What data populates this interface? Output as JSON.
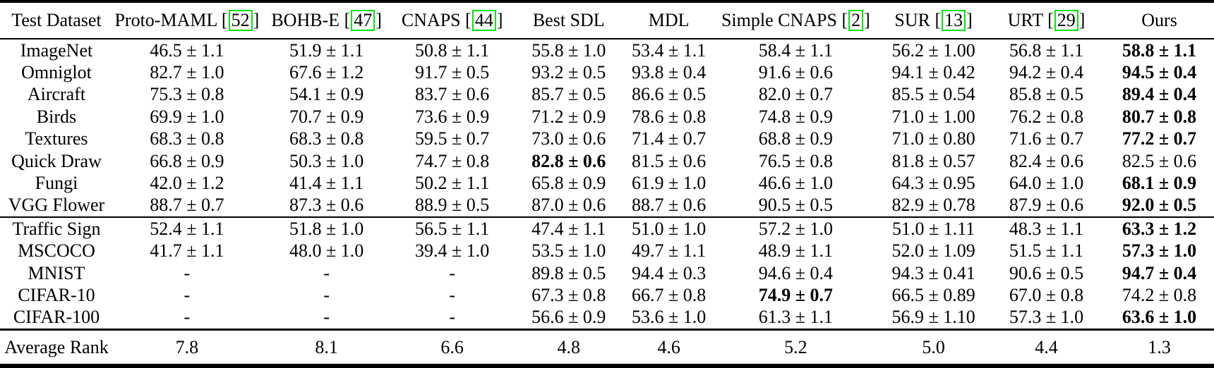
{
  "table": {
    "citation_box_color": "#00e60a",
    "columns": [
      {
        "label": "Test Dataset",
        "cite": null
      },
      {
        "label": "Proto-MAML",
        "cite": "52"
      },
      {
        "label": "BOHB-E",
        "cite": "47"
      },
      {
        "label": "CNAPS",
        "cite": "44"
      },
      {
        "label": "Best SDL",
        "cite": null
      },
      {
        "label": "MDL",
        "cite": null
      },
      {
        "label": "Simple CNAPS",
        "cite": "2"
      },
      {
        "label": "SUR",
        "cite": "13"
      },
      {
        "label": "URT",
        "cite": "29"
      },
      {
        "label": "Ours",
        "cite": null
      }
    ],
    "sections": [
      {
        "rows": [
          {
            "dataset": "ImageNet",
            "values": [
              "46.5 ± 1.1",
              "51.9 ± 1.1",
              "50.8 ± 1.1",
              "55.8 ± 1.0",
              "53.4 ± 1.1",
              "58.4 ± 1.1",
              "56.2 ± 1.00",
              "56.8 ± 1.1",
              "58.8 ± 1.1"
            ],
            "bold": [
              8
            ]
          },
          {
            "dataset": "Omniglot",
            "values": [
              "82.7 ± 1.0",
              "67.6 ± 1.2",
              "91.7 ± 0.5",
              "93.2 ± 0.5",
              "93.8 ± 0.4",
              "91.6 ± 0.6",
              "94.1 ± 0.42",
              "94.2 ± 0.4",
              "94.5 ± 0.4"
            ],
            "bold": [
              8
            ]
          },
          {
            "dataset": "Aircraft",
            "values": [
              "75.3 ± 0.8",
              "54.1 ± 0.9",
              "83.7 ± 0.6",
              "85.7 ± 0.5",
              "86.6 ± 0.5",
              "82.0 ± 0.7",
              "85.5 ± 0.54",
              "85.8 ± 0.5",
              "89.4 ± 0.4"
            ],
            "bold": [
              8
            ]
          },
          {
            "dataset": "Birds",
            "values": [
              "69.9 ± 1.0",
              "70.7 ± 0.9",
              "73.6 ± 0.9",
              "71.2 ± 0.9",
              "78.6 ± 0.8",
              "74.8 ± 0.9",
              "71.0 ± 1.00",
              "76.2 ± 0.8",
              "80.7 ± 0.8"
            ],
            "bold": [
              8
            ]
          },
          {
            "dataset": "Textures",
            "values": [
              "68.3 ± 0.8",
              "68.3 ± 0.8",
              "59.5 ± 0.7",
              "73.0 ± 0.6",
              "71.4 ± 0.7",
              "68.8 ± 0.9",
              "71.0 ± 0.80",
              "71.6 ± 0.7",
              "77.2 ± 0.7"
            ],
            "bold": [
              8
            ]
          },
          {
            "dataset": "Quick Draw",
            "values": [
              "66.8 ± 0.9",
              "50.3 ± 1.0",
              "74.7 ± 0.8",
              "82.8 ± 0.6",
              "81.5 ± 0.6",
              "76.5 ± 0.8",
              "81.8 ± 0.57",
              "82.4 ± 0.6",
              "82.5 ± 0.6"
            ],
            "bold": [
              3
            ]
          },
          {
            "dataset": "Fungi",
            "values": [
              "42.0 ± 1.2",
              "41.4 ± 1.1",
              "50.2 ± 1.1",
              "65.8 ± 0.9",
              "61.9 ± 1.0",
              "46.6 ± 1.0",
              "64.3 ± 0.95",
              "64.0 ± 1.0",
              "68.1 ± 0.9"
            ],
            "bold": [
              8
            ]
          },
          {
            "dataset": "VGG Flower",
            "values": [
              "88.7 ± 0.7",
              "87.3 ± 0.6",
              "88.9 ± 0.5",
              "87.0 ± 0.6",
              "88.7 ± 0.6",
              "90.5 ± 0.5",
              "82.9 ± 0.78",
              "87.9 ± 0.6",
              "92.0 ± 0.5"
            ],
            "bold": [
              8
            ]
          }
        ]
      },
      {
        "rows": [
          {
            "dataset": "Traffic Sign",
            "values": [
              "52.4 ± 1.1",
              "51.8 ± 1.0",
              "56.5 ± 1.1",
              "47.4 ± 1.1",
              "51.0 ± 1.0",
              "57.2 ± 1.0",
              "51.0 ± 1.11",
              "48.3 ± 1.1",
              "63.3 ± 1.2"
            ],
            "bold": [
              8
            ]
          },
          {
            "dataset": "MSCOCO",
            "values": [
              "41.7 ± 1.1",
              "48.0 ± 1.0",
              "39.4 ± 1.0",
              "53.5 ± 1.0",
              "49.7 ± 1.1",
              "48.9 ± 1.1",
              "52.0 ± 1.09",
              "51.5 ± 1.1",
              "57.3 ± 1.0"
            ],
            "bold": [
              8
            ]
          },
          {
            "dataset": "MNIST",
            "values": [
              "-",
              "-",
              "-",
              "89.8 ± 0.5",
              "94.4 ± 0.3",
              "94.6 ± 0.4",
              "94.3 ± 0.41",
              "90.6 ± 0.5",
              "94.7 ± 0.4"
            ],
            "bold": [
              8
            ]
          },
          {
            "dataset": "CIFAR-10",
            "values": [
              "-",
              "-",
              "-",
              "67.3 ± 0.8",
              "66.7 ± 0.8",
              "74.9 ± 0.7",
              "66.5 ± 0.89",
              "67.0 ± 0.8",
              "74.2 ± 0.8"
            ],
            "bold": [
              5
            ]
          },
          {
            "dataset": "CIFAR-100",
            "values": [
              "-",
              "-",
              "-",
              "56.6 ± 0.9",
              "53.6 ± 1.0",
              "61.3 ± 1.1",
              "56.9 ± 1.10",
              "57.3 ± 1.0",
              "63.6 ± 1.0"
            ],
            "bold": [
              8
            ]
          }
        ]
      }
    ],
    "footer": {
      "label": "Average Rank",
      "values": [
        "7.8",
        "8.1",
        "6.6",
        "4.8",
        "4.6",
        "5.2",
        "5.0",
        "4.4",
        "1.3"
      ],
      "bold": []
    }
  }
}
